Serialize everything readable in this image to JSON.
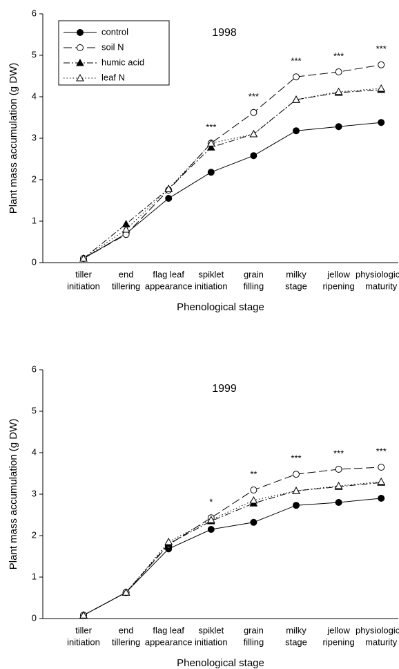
{
  "chart_data": [
    {
      "type": "line",
      "title": "1998",
      "xlabel": "Phenological stage",
      "ylabel": "Plant mass accumulation (g DW)",
      "categories": [
        [
          "tiller",
          "initiation"
        ],
        [
          "end",
          "tillering"
        ],
        [
          "flag leaf",
          "appearance"
        ],
        [
          "spiklet",
          "initiation"
        ],
        [
          "grain",
          "filling"
        ],
        [
          "milky",
          "stage"
        ],
        [
          "jellow",
          "ripening"
        ],
        [
          "physiological",
          "maturity"
        ]
      ],
      "annotations": [
        null,
        null,
        null,
        "***",
        "***",
        "***",
        "***",
        "***"
      ],
      "ylim": [
        0,
        6
      ],
      "yticks": [
        0,
        1,
        2,
        3,
        4,
        5,
        6
      ],
      "grid": false,
      "legend": "upper left",
      "series": [
        {
          "name": "control",
          "color": "#000000",
          "marker": "circle-filled",
          "linestyle": "solid",
          "values": [
            0.1,
            0.7,
            1.55,
            2.18,
            2.58,
            3.18,
            3.28,
            3.38
          ]
        },
        {
          "name": "soil N",
          "color": "#000000",
          "marker": "circle-open",
          "linestyle": "dashed",
          "values": [
            0.1,
            0.68,
            1.75,
            2.88,
            3.62,
            4.48,
            4.6,
            4.77
          ]
        },
        {
          "name": "humic acid",
          "color": "#000000",
          "marker": "triangle-filled",
          "linestyle": "dashdot",
          "values": [
            0.1,
            0.93,
            1.78,
            2.78,
            3.1,
            3.93,
            4.1,
            4.17
          ]
        },
        {
          "name": "leaf N",
          "color": "#000000",
          "marker": "triangle-open",
          "linestyle": "dotted",
          "values": [
            0.1,
            0.8,
            1.78,
            2.88,
            3.1,
            3.93,
            4.12,
            4.2
          ]
        }
      ]
    },
    {
      "type": "line",
      "title": "1999",
      "xlabel": "Phenological stage",
      "ylabel": "Plant mass accumulation (g DW)",
      "categories": [
        [
          "tiller",
          "initiation"
        ],
        [
          "end",
          "tillering"
        ],
        [
          "flag leaf",
          "appearance"
        ],
        [
          "spiklet",
          "initiation"
        ],
        [
          "grain",
          "filling"
        ],
        [
          "milky",
          "stage"
        ],
        [
          "jellow",
          "ripening"
        ],
        [
          "physiological",
          "maturity"
        ]
      ],
      "annotations": [
        null,
        null,
        null,
        "*",
        "**",
        "***",
        "***",
        "***"
      ],
      "ylim": [
        0,
        6
      ],
      "yticks": [
        0,
        1,
        2,
        3,
        4,
        5,
        6
      ],
      "grid": false,
      "series": [
        {
          "color": "#000000",
          "marker": "circle-filled",
          "linestyle": "solid",
          "values": [
            0.08,
            0.63,
            1.68,
            2.15,
            2.32,
            2.73,
            2.8,
            2.9
          ]
        },
        {
          "color": "#000000",
          "marker": "circle-open",
          "linestyle": "dashed",
          "values": [
            0.08,
            0.63,
            1.78,
            2.43,
            3.1,
            3.48,
            3.6,
            3.65
          ]
        },
        {
          "color": "#000000",
          "marker": "triangle-filled",
          "linestyle": "dashdot",
          "values": [
            0.08,
            0.63,
            1.8,
            2.35,
            2.78,
            3.08,
            3.18,
            3.28
          ]
        },
        {
          "color": "#000000",
          "marker": "triangle-open",
          "linestyle": "dotted",
          "values": [
            0.08,
            0.63,
            1.85,
            2.38,
            2.85,
            3.08,
            3.2,
            3.3
          ]
        }
      ]
    }
  ]
}
